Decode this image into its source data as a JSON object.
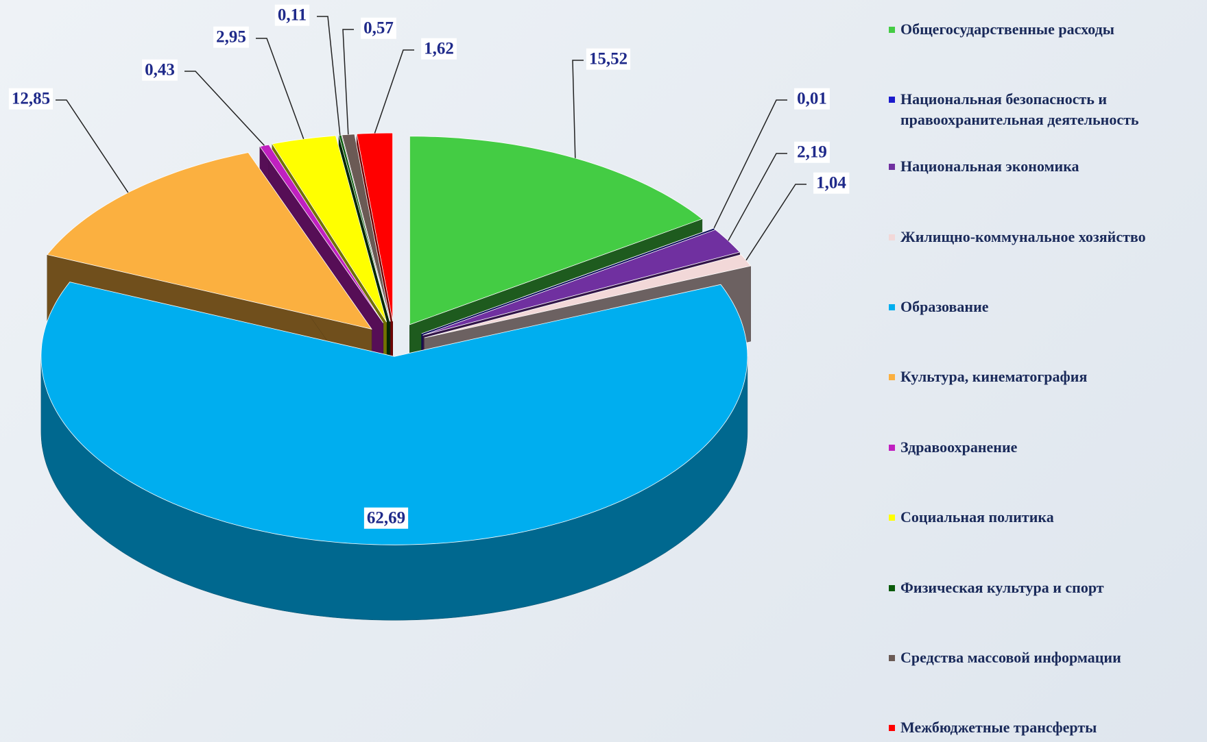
{
  "chart_data": {
    "type": "pie3d",
    "categories": [
      "Общегосударственные расходы",
      "Национальная безопасность и правоохранительная деятельность",
      "Национальная экономика",
      "Жилищно-коммунальное хозяйство",
      "Образование",
      "Культура,  кинематография",
      "Здравоохранение",
      "Социальная политика",
      "Физическая культура и спорт",
      "Средства массовой информации",
      "Межбюджетные трансферты"
    ],
    "values": [
      15.52,
      0.01,
      2.19,
      1.04,
      62.69,
      12.85,
      0.43,
      2.95,
      0.11,
      0.57,
      1.62
    ],
    "value_labels": [
      "15,52",
      "0,01",
      "2,19",
      "1,04",
      "62,69",
      "12,85",
      "0,43",
      "2,95",
      "0,11",
      "0,57",
      "1,62"
    ],
    "colors": [
      "#44cc44",
      "#1a1acc",
      "#7030a0",
      "#f2d8d8",
      "#00aeef",
      "#fbb040",
      "#c020c0",
      "#ffff00",
      "#0a5a0a",
      "#6b5a55",
      "#ff0000"
    ],
    "legend": "right"
  }
}
